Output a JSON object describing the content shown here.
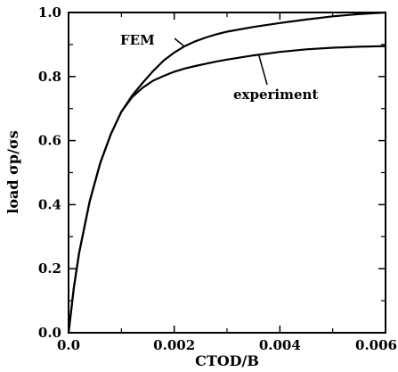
{
  "chart_data": {
    "type": "line",
    "xlabel": "CTOD/B",
    "ylabel": "load σp/σs",
    "xlim": [
      0.0,
      0.006
    ],
    "ylim": [
      0.0,
      1.0
    ],
    "xticks": [
      0.0,
      0.002,
      0.004,
      0.006
    ],
    "xtick_labels": [
      "0.0",
      "0.002",
      "0.004",
      "0.006"
    ],
    "yticks": [
      0.0,
      0.2,
      0.4,
      0.6,
      0.8,
      1.0
    ],
    "ytick_labels": [
      "0.0",
      "0.2",
      "0.4",
      "0.6",
      "0.8",
      "1.0"
    ],
    "grid": false,
    "legend": "none",
    "series": [
      {
        "name": "FEM",
        "x": [
          0.0,
          0.0001,
          0.0002,
          0.0004,
          0.0006,
          0.0008,
          0.001,
          0.0012,
          0.0014,
          0.0016,
          0.0018,
          0.002,
          0.0022,
          0.0024,
          0.0026,
          0.0028,
          0.003,
          0.0035,
          0.004,
          0.0045,
          0.005,
          0.0055,
          0.006
        ],
        "values": [
          0.0,
          0.14,
          0.25,
          0.41,
          0.53,
          0.62,
          0.69,
          0.74,
          0.78,
          0.817,
          0.85,
          0.875,
          0.895,
          0.91,
          0.922,
          0.932,
          0.94,
          0.955,
          0.967,
          0.978,
          0.988,
          0.995,
          1.0
        ]
      },
      {
        "name": "experiment",
        "x": [
          0.0,
          5e-05,
          0.0001,
          0.0002,
          0.0004,
          0.0006,
          0.0008,
          0.001,
          0.0012,
          0.0014,
          0.0016,
          0.0018,
          0.002,
          0.0022,
          0.0024,
          0.0026,
          0.0028,
          0.003,
          0.0035,
          0.004,
          0.0045,
          0.005,
          0.0055,
          0.006
        ],
        "values": [
          0.0,
          0.07,
          0.14,
          0.25,
          0.41,
          0.53,
          0.62,
          0.69,
          0.735,
          0.765,
          0.787,
          0.802,
          0.815,
          0.825,
          0.833,
          0.84,
          0.847,
          0.853,
          0.866,
          0.877,
          0.885,
          0.89,
          0.893,
          0.895
        ]
      }
    ],
    "annotations": [
      {
        "text": "FEM",
        "series": "FEM"
      },
      {
        "text": "experiment",
        "series": "experiment"
      }
    ]
  }
}
